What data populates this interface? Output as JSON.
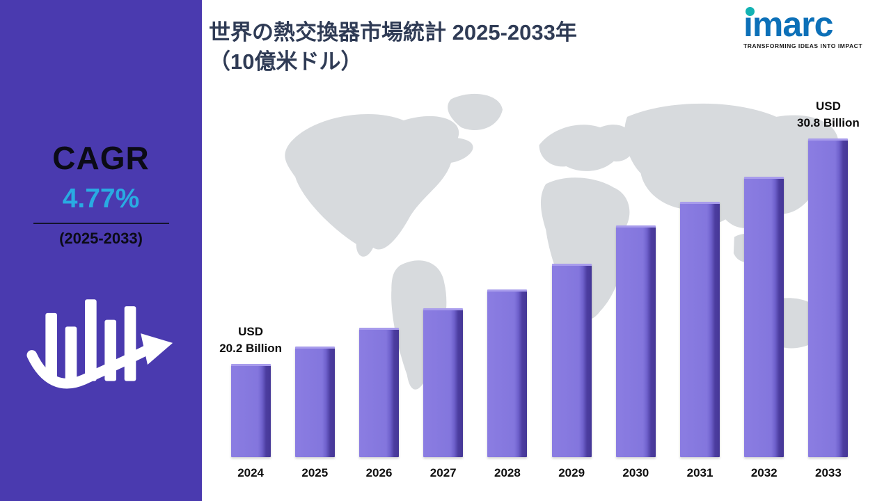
{
  "sidebar": {
    "cagr_label": "CAGR",
    "cagr_value": "4.77%",
    "period": "(2025-2033)",
    "icon": "growth-bars-arrow-icon"
  },
  "header": {
    "title_line1": "世界の熱交換器市場統計 2025-2033年",
    "title_line2": "（10億米ドル）"
  },
  "logo": {
    "text": "imarc",
    "tagline": "TRANSFORMING IDEAS INTO IMPACT"
  },
  "colors": {
    "sidebar_purple": "#4A3AAF",
    "bar_front": "#8376DD",
    "bar_side": "#4C3DA0",
    "accent_blue": "#29ABE2",
    "title_navy": "#2F3B55",
    "logo_blue": "#0C70B8",
    "logo_teal": "#12B2B3",
    "map_gray": "#D7DADD"
  },
  "chart_data": {
    "type": "bar",
    "title": "世界の熱交換器市場統計 2025-2033年（10億米ドル）",
    "xlabel": "",
    "ylabel": "USD Billion",
    "categories": [
      "2024",
      "2025",
      "2026",
      "2027",
      "2028",
      "2029",
      "2030",
      "2031",
      "2032",
      "2033"
    ],
    "values": [
      20.2,
      21.0,
      21.9,
      22.8,
      23.7,
      24.9,
      26.7,
      27.8,
      29.0,
      30.8
    ],
    "ylim": [
      15.8,
      32
    ],
    "grid": false,
    "legend": "none",
    "annotations": [
      {
        "index": 0,
        "lines": [
          "USD",
          "20.2 Billion"
        ]
      },
      {
        "index": 9,
        "lines": [
          "USD",
          "30.8 Billion"
        ]
      }
    ]
  }
}
